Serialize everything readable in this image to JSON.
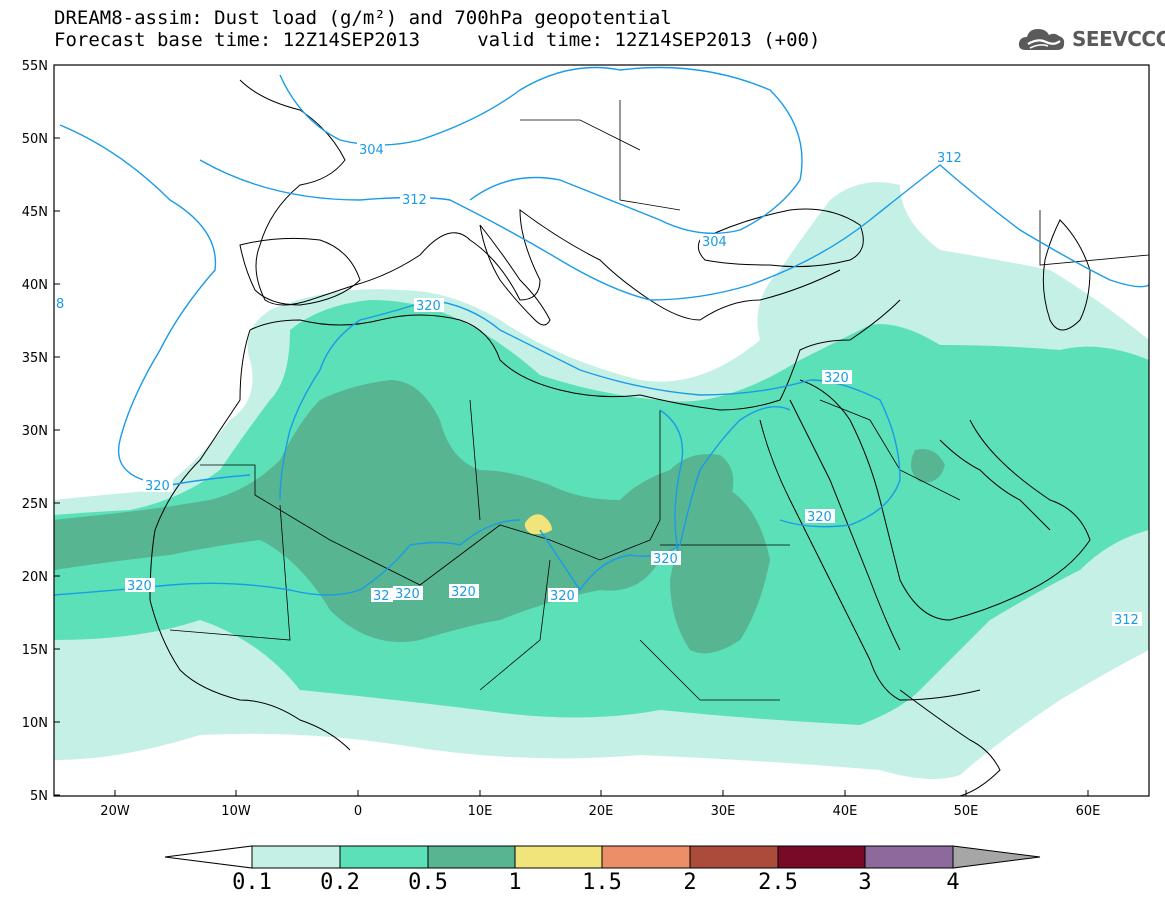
{
  "header": {
    "title_line1": "DREAM8-assim: Dust load (g/m²) and 700hPa geopotential",
    "title_line2": "Forecast base time: 12Z14SEP2013     valid time: 12Z14SEP2013 (+00)"
  },
  "logo": {
    "text": "SEEVCCC"
  },
  "map": {
    "lat_labels": [
      "55N",
      "50N",
      "45N",
      "40N",
      "35N",
      "30N",
      "25N",
      "20N",
      "15N",
      "10N",
      "5N"
    ],
    "lon_labels": [
      "20W",
      "10W",
      "0",
      "10E",
      "20E",
      "30E",
      "40E",
      "50E",
      "60E"
    ],
    "contour_labels": [
      "304",
      "312",
      "304",
      "312",
      "320",
      "320",
      "320",
      "320",
      "320",
      "320",
      "320",
      "320",
      "320",
      "312",
      "8",
      "32"
    ],
    "colors": {
      "dust_0.1": "#c4f0e6",
      "dust_0.2": "#5ce0b8",
      "dust_0.5": "#57b592",
      "dust_1": "#f0e47a",
      "contour": "#1a9be8",
      "coast": "#000000"
    }
  },
  "colorbar": {
    "labels": [
      "0.1",
      "0.2",
      "0.5",
      "1",
      "1.5",
      "2",
      "2.5",
      "3",
      "4"
    ],
    "colors": [
      "#c4f0e6",
      "#5ce0b8",
      "#57b592",
      "#f0e47a",
      "#eb8f68",
      "#aa4b3c",
      "#780a28",
      "#8c6a9c"
    ],
    "end_colors": {
      "low": "#ffffff",
      "high": "#a6a6a6"
    }
  }
}
